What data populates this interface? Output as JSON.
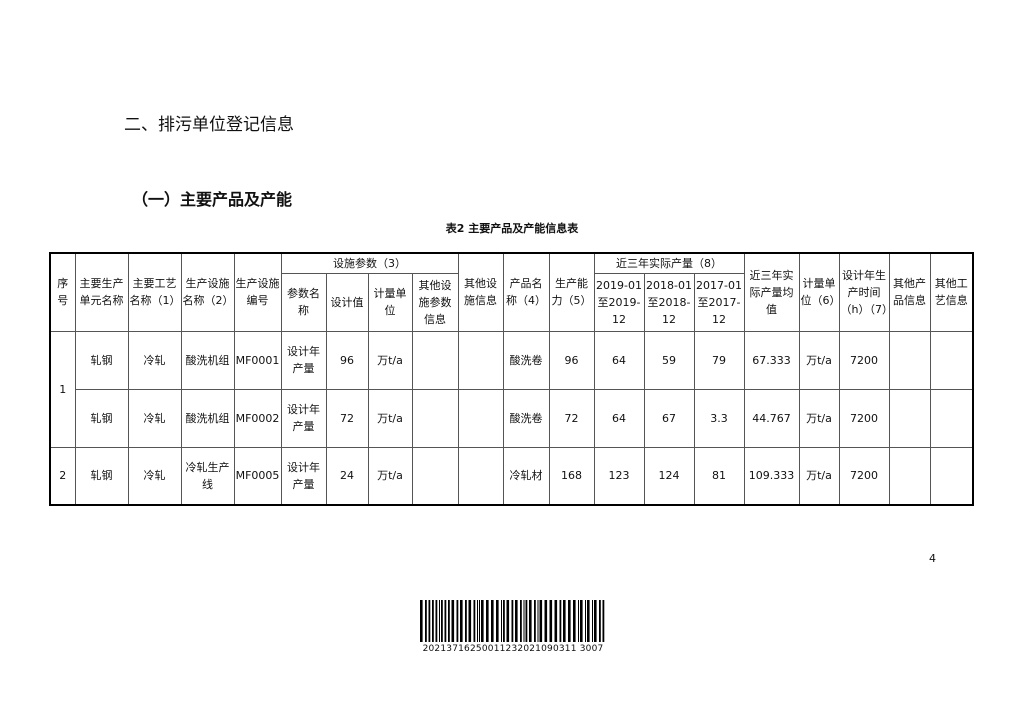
{
  "section_title": "二、排污单位登记信息",
  "subsection_title": "（一）主要产品及产能",
  "table_caption": "表2 主要产品及产能信息表",
  "headers": {
    "seq": "序号",
    "unit": "主要生产单元名称",
    "process": "主要工艺名称（1）",
    "facility": "生产设施名称（2）",
    "facility_no": "生产设施编号",
    "params_group": "设施参数（3）",
    "param_name": "参数名称",
    "design_value": "设计值",
    "param_unit": "计量单位",
    "other_param": "其他设施参数信息",
    "other_facility": "其他设施信息",
    "product": "产品名称（4）",
    "capacity": "生产能力（5）",
    "output_group": "近三年实际产量（8）",
    "y2019": "2019-01至2019-12",
    "y2018": "2018-01至2018-12",
    "y2017": "2017-01至2017-12",
    "avg": "近三年实际产量均值",
    "unit6": "计量单位（6）",
    "hours": "设计年生产时间（h）（7）",
    "other_product": "其他产品信息",
    "other_process": "其他工艺信息"
  },
  "rows": [
    {
      "seq": "1",
      "unit": "轧钢",
      "process": "冷轧",
      "facility": "酸洗机组",
      "facility_no": "MF0001",
      "param_name": "设计年产量",
      "design_value": "96",
      "param_unit": "万t/a",
      "product": "酸洗卷",
      "capacity": "96",
      "y2019": "64",
      "y2018": "59",
      "y2017": "79",
      "avg": "67.333",
      "unit6": "万t/a",
      "hours": "7200"
    },
    {
      "unit": "轧钢",
      "process": "冷轧",
      "facility": "酸洗机组",
      "facility_no": "MF0002",
      "param_name": "设计年产量",
      "design_value": "72",
      "param_unit": "万t/a",
      "product": "酸洗卷",
      "capacity": "72",
      "y2019": "64",
      "y2018": "67",
      "y2017": "3.3",
      "avg": "44.767",
      "unit6": "万t/a",
      "hours": "7200"
    },
    {
      "seq": "2",
      "unit": "轧钢",
      "process": "冷轧",
      "facility": "冷轧生产线",
      "facility_no": "MF0005",
      "param_name": "设计年产量",
      "design_value": "24",
      "param_unit": "万t/a",
      "product": "冷轧材",
      "capacity": "168",
      "y2019": "123",
      "y2018": "124",
      "y2017": "81",
      "avg": "109.333",
      "unit6": "万t/a",
      "hours": "7200"
    }
  ],
  "page_number": "4",
  "barcode_number": "20213716250011232021090311 3007"
}
